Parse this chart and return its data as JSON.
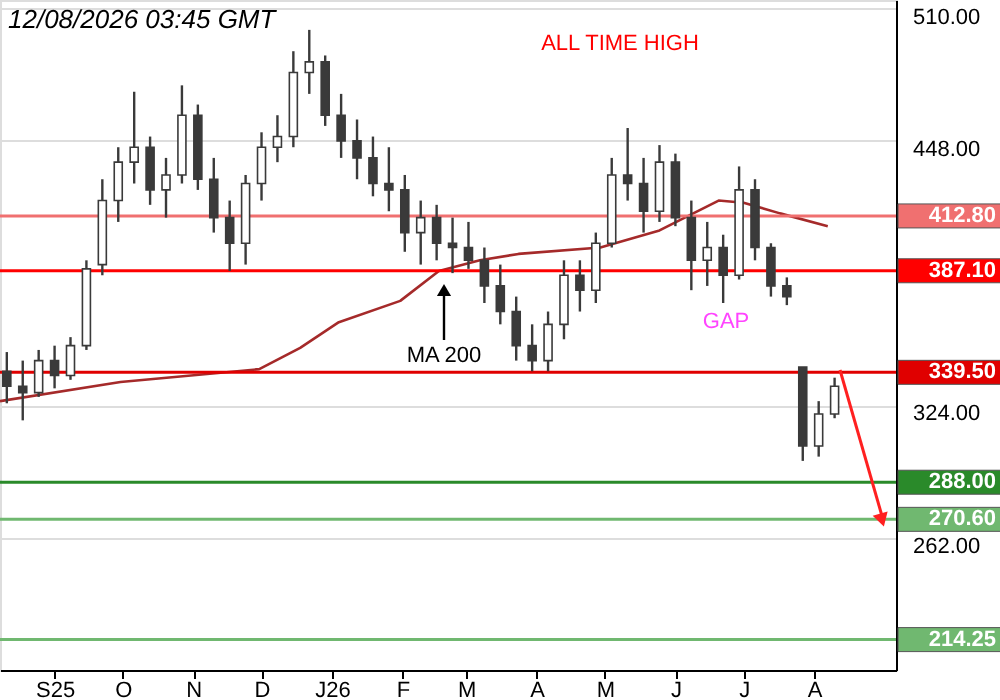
{
  "chart_data": {
    "type": "candlestick",
    "xlim": [
      "2025-08-08",
      "2026-09-06"
    ],
    "ylim": [
      200,
      514
    ],
    "xticks": [
      {
        "value": "2025-09-01",
        "label": "S25"
      },
      {
        "value": "2025-10-01",
        "label": "O"
      },
      {
        "value": "2025-11-01",
        "label": "N"
      },
      {
        "value": "2025-12-01",
        "label": "D"
      },
      {
        "value": "2026-01-01",
        "label": "J26"
      },
      {
        "value": "2026-02-01",
        "label": "F"
      },
      {
        "value": "2026-03-01",
        "label": "M"
      },
      {
        "value": "2026-04-01",
        "label": "A"
      },
      {
        "value": "2026-05-01",
        "label": "M"
      },
      {
        "value": "2026-06-01",
        "label": "J"
      },
      {
        "value": "2026-07-01",
        "label": "J"
      },
      {
        "value": "2026-08-01",
        "label": "A"
      }
    ],
    "yticks": [
      {
        "value": 262,
        "label": "262.00"
      },
      {
        "value": 324,
        "label": "324.00"
      },
      {
        "value": 448,
        "label": "448.00"
      },
      {
        "value": 510,
        "label": "510.00"
      }
    ],
    "grid": "y",
    "series": [
      {
        "color": "#3a3a3a",
        "x": [
          "2025-08-11",
          "2025-08-18",
          "2025-08-25",
          "2025-09-01",
          "2025-09-08",
          "2025-09-15",
          "2025-09-22",
          "2025-09-29",
          "2025-10-06",
          "2025-10-13",
          "2025-10-20",
          "2025-10-27",
          "2025-11-03",
          "2025-11-10",
          "2025-11-17",
          "2025-11-24",
          "2025-12-01",
          "2025-12-08",
          "2025-12-15",
          "2025-12-22",
          "2025-12-29",
          "2026-01-05",
          "2026-01-12",
          "2026-01-19",
          "2026-01-26",
          "2026-02-02",
          "2026-02-09",
          "2026-02-16",
          "2026-02-23",
          "2026-03-02",
          "2026-03-09",
          "2026-03-16",
          "2026-03-23",
          "2026-03-30",
          "2026-04-06",
          "2026-04-13",
          "2026-04-20",
          "2026-04-27",
          "2026-05-04",
          "2026-05-11",
          "2026-05-18",
          "2026-05-25",
          "2026-06-01",
          "2026-06-08",
          "2026-06-15",
          "2026-06-22",
          "2026-06-29",
          "2026-07-06",
          "2026-07-13",
          "2026-07-20",
          "2026-07-27",
          "2026-08-03",
          "2026-08-10"
        ],
        "ohlc": [
          [
            340,
            349,
            325,
            333
          ],
          [
            333,
            345,
            317,
            330
          ],
          [
            330,
            350,
            328,
            345
          ],
          [
            345,
            352,
            332,
            338
          ],
          [
            338,
            356,
            336,
            352
          ],
          [
            352,
            392,
            350,
            388
          ],
          [
            390,
            430,
            385,
            420
          ],
          [
            420,
            445,
            410,
            438
          ],
          [
            438,
            471,
            428,
            445
          ],
          [
            445,
            450,
            418,
            425
          ],
          [
            425,
            440,
            412,
            432
          ],
          [
            432,
            474,
            428,
            460
          ],
          [
            460,
            465,
            425,
            430
          ],
          [
            430,
            440,
            405,
            412
          ],
          [
            412,
            420,
            387,
            400
          ],
          [
            400,
            432,
            390,
            428
          ],
          [
            428,
            452,
            420,
            445
          ],
          [
            445,
            460,
            438,
            450
          ],
          [
            450,
            490,
            445,
            480
          ],
          [
            480,
            500,
            470,
            485
          ],
          [
            485,
            488,
            455,
            460
          ],
          [
            460,
            470,
            440,
            448
          ],
          [
            448,
            458,
            430,
            440
          ],
          [
            440,
            450,
            422,
            428
          ],
          [
            428,
            445,
            415,
            425
          ],
          [
            425,
            432,
            396,
            405
          ],
          [
            405,
            420,
            390,
            412
          ],
          [
            412,
            418,
            392,
            400
          ],
          [
            400,
            412,
            386,
            398
          ],
          [
            398,
            410,
            388,
            392
          ],
          [
            392,
            398,
            372,
            380
          ],
          [
            380,
            390,
            362,
            368
          ],
          [
            368,
            375,
            345,
            352
          ],
          [
            352,
            362,
            340,
            345
          ],
          [
            345,
            368,
            340,
            362
          ],
          [
            362,
            392,
            355,
            385
          ],
          [
            385,
            392,
            368,
            378
          ],
          [
            378,
            405,
            372,
            400
          ],
          [
            400,
            440,
            398,
            432
          ],
          [
            432,
            454,
            420,
            428
          ],
          [
            428,
            440,
            405,
            415
          ],
          [
            415,
            446,
            410,
            438
          ],
          [
            438,
            442,
            408,
            412
          ],
          [
            412,
            420,
            378,
            392
          ],
          [
            392,
            410,
            380,
            398
          ],
          [
            398,
            404,
            372,
            385
          ],
          [
            385,
            436,
            383,
            425
          ],
          [
            425,
            430,
            392,
            398
          ],
          [
            398,
            400,
            375,
            380
          ],
          [
            380,
            384,
            371,
            375
          ],
          [
            342,
            342,
            298,
            305
          ],
          [
            305,
            326,
            300,
            320
          ],
          [
            320,
            337,
            318,
            333
          ]
        ]
      },
      {
        "type": "line",
        "color": "#a52a2a",
        "x": [
          "2025-08-08",
          "2025-09-30",
          "2025-11-30",
          "2025-12-18",
          "2026-01-04",
          "2026-01-31",
          "2026-02-17",
          "2026-03-07",
          "2026-03-24",
          "2026-04-29",
          "2026-05-25",
          "2026-06-20",
          "2026-07-01",
          "2026-07-17",
          "2026-08-07"
        ],
        "values": [
          326,
          335,
          341,
          351,
          363,
          373,
          387,
          392,
          395,
          398,
          406,
          420,
          419,
          414,
          408
        ]
      }
    ],
    "ref_lines": [
      {
        "axis": "y",
        "value": 412.8,
        "label": "412.80",
        "color": "#f07070"
      },
      {
        "axis": "y",
        "value": 387.1,
        "label": "387.10",
        "color": "#ff0000"
      },
      {
        "axis": "y",
        "value": 339.5,
        "label": "339.50",
        "color": "#e00000"
      },
      {
        "axis": "y",
        "value": 288,
        "label": "288.00",
        "color": "#2a8a2a"
      },
      {
        "axis": "y",
        "value": 270.6,
        "label": "270.60",
        "color": "#70b870"
      },
      {
        "axis": "y",
        "value": 214.25,
        "label": "214.25",
        "color": "#70b870"
      }
    ],
    "annotations": [
      "12/08/2026 03:45 GMT",
      "ALL TIME HIGH",
      "MA 200",
      "GAP"
    ]
  }
}
